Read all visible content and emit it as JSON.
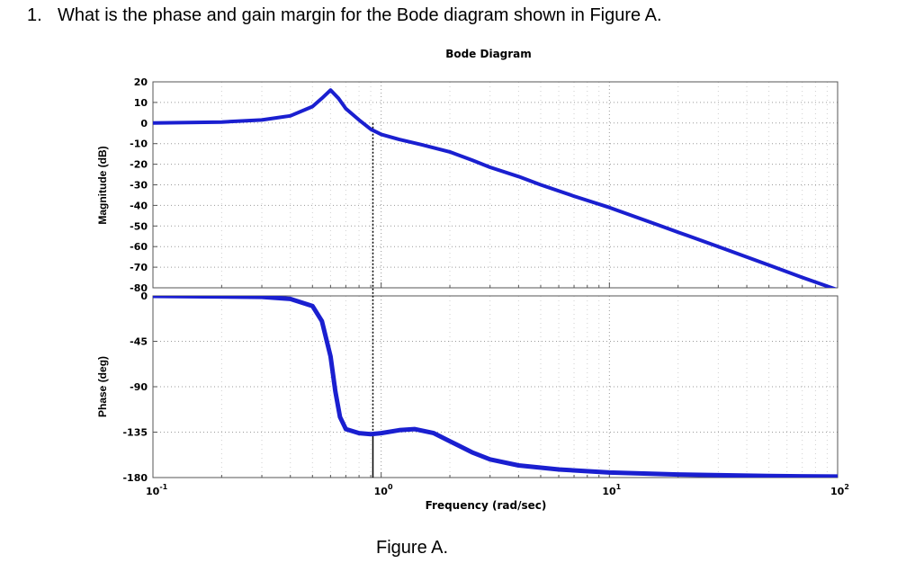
{
  "question": {
    "number": "1.",
    "text": "What is the phase and gain margin for the Bode diagram shown in Figure A."
  },
  "caption": "Figure A.",
  "chart_data": {
    "type": "line",
    "title": "Bode Diagram",
    "xlabel": "Frequency  (rad/sec)",
    "xscale": "log",
    "xlim": [
      0.1,
      100
    ],
    "x_ticks": [
      {
        "base": "10",
        "exp": "-1"
      },
      {
        "base": "10",
        "exp": "0"
      },
      {
        "base": "10",
        "exp": "1"
      },
      {
        "base": "10",
        "exp": "2"
      }
    ],
    "grid": true,
    "line_color": "#1a1fd0",
    "marker_line_color": "#000000",
    "magnitude": {
      "ylabel": "Magnitude (dB)",
      "ylim": [
        -80,
        20
      ],
      "yticks": [
        20,
        10,
        0,
        -10,
        -20,
        -30,
        -40,
        -50,
        -60,
        -70,
        -80
      ],
      "x": [
        0.1,
        0.2,
        0.3,
        0.4,
        0.5,
        0.55,
        0.6,
        0.65,
        0.7,
        0.8,
        0.9,
        1.0,
        1.2,
        1.5,
        2.0,
        2.5,
        3.0,
        4.0,
        5.0,
        7.0,
        10,
        15,
        20,
        30,
        50,
        70,
        100
      ],
      "values": [
        0,
        0.5,
        1.5,
        3.5,
        8,
        12,
        16,
        12,
        7,
        1.5,
        -3,
        -5.5,
        -8,
        -10.5,
        -14,
        -18,
        -21.5,
        -26,
        -30,
        -35.5,
        -41,
        -48,
        -53,
        -60,
        -69,
        -75,
        -81
      ]
    },
    "phase": {
      "ylabel": "Phase (deg)",
      "ylim": [
        -180,
        0
      ],
      "yticks": [
        0,
        -45,
        -90,
        -135,
        -180
      ],
      "x": [
        0.1,
        0.3,
        0.4,
        0.5,
        0.55,
        0.6,
        0.63,
        0.66,
        0.7,
        0.8,
        0.9,
        1.0,
        1.2,
        1.4,
        1.7,
        2.0,
        2.5,
        3.0,
        4.0,
        6.0,
        10,
        20,
        50,
        100
      ],
      "values": [
        0,
        -1,
        -3,
        -10,
        -25,
        -60,
        -95,
        -120,
        -132,
        -136,
        -137,
        -136,
        -133,
        -132,
        -136,
        -144,
        -155,
        -162,
        -168,
        -172,
        -175,
        -177,
        -178.5,
        -179
      ]
    },
    "marker_frequency": 0.92
  }
}
